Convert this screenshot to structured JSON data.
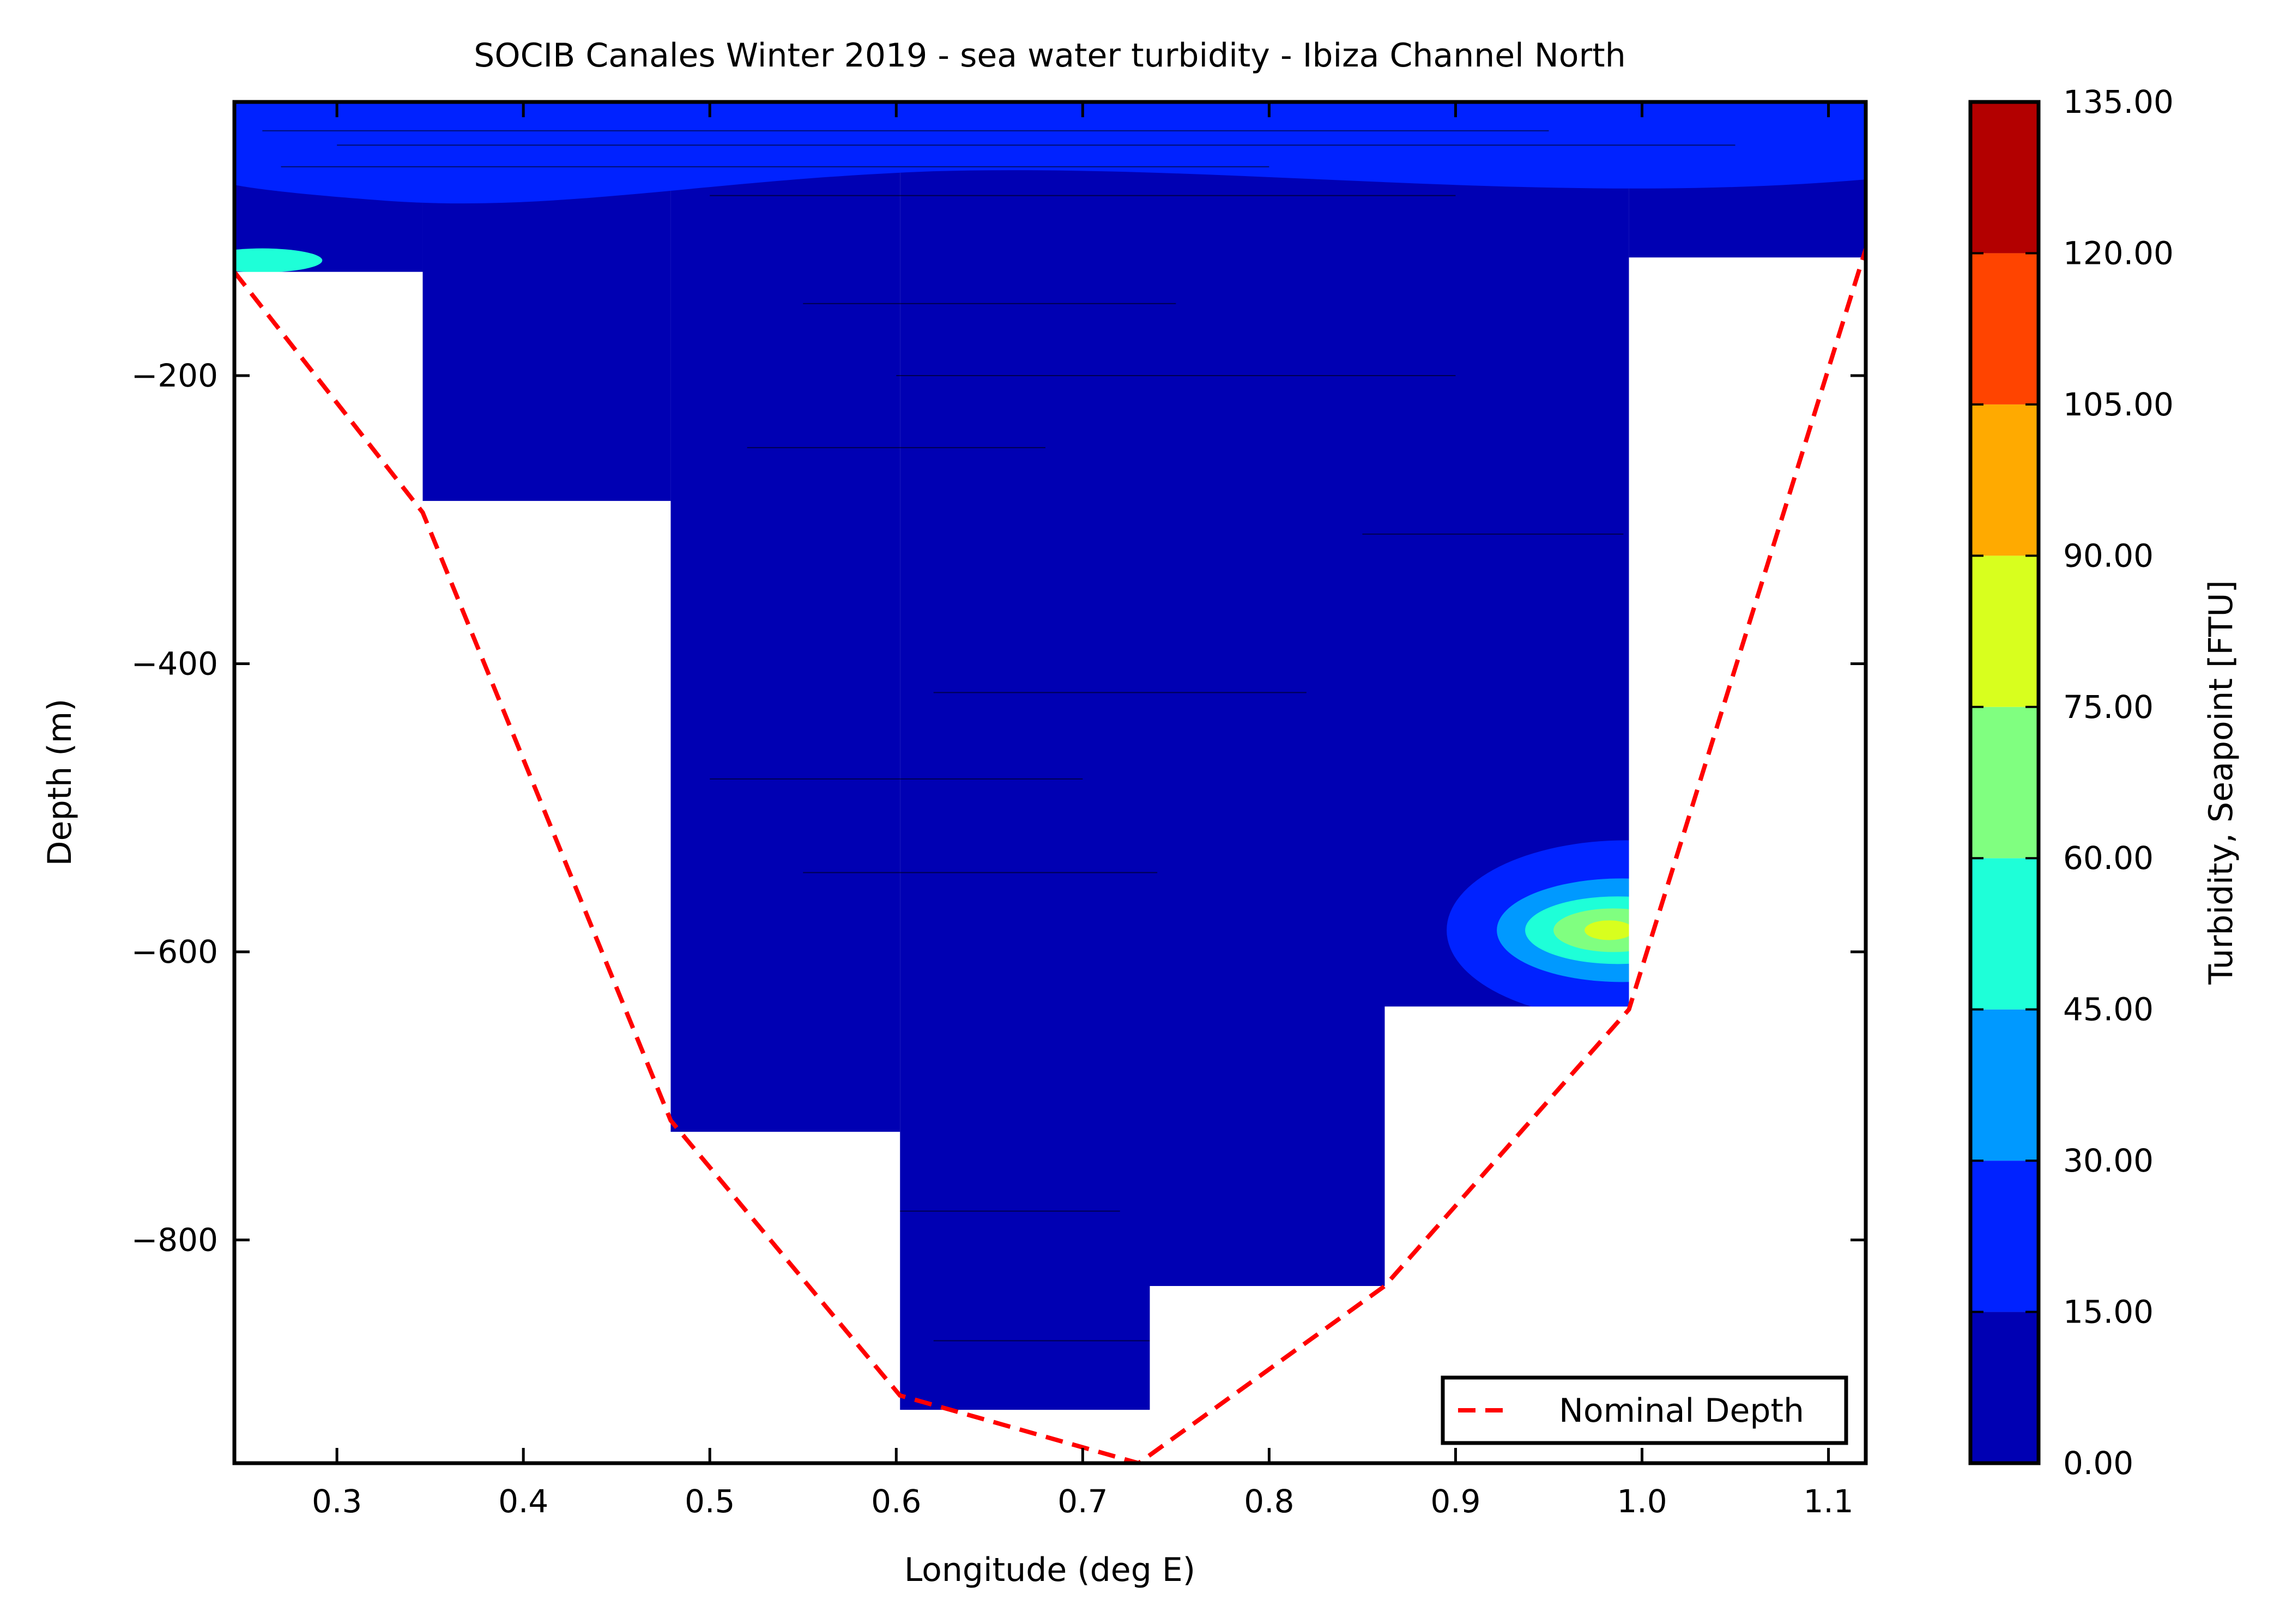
{
  "chart_data": {
    "type": "heatmap",
    "title": "SOCIB Canales Winter 2019 - sea water turbidity  -  Ibiza Channel North",
    "xlabel": "Longitude (deg E)",
    "ylabel": "Depth (m)",
    "xlim": [
      0.245,
      1.12
    ],
    "ylim": [
      -955,
      -10
    ],
    "xticks": [
      0.3,
      0.4,
      0.5,
      0.6,
      0.7,
      0.8,
      0.9,
      1.0,
      1.1
    ],
    "xtick_labels": [
      "0.3",
      "0.4",
      "0.5",
      "0.6",
      "0.7",
      "0.8",
      "0.9",
      "1.0",
      "1.1"
    ],
    "yticks": [
      -200,
      -400,
      -600,
      -800
    ],
    "ytick_labels": [
      "−200",
      "−400",
      "−600",
      "−800"
    ],
    "colorbar": {
      "label": "Turbidity, Seapoint [FTU]",
      "levels": [
        0,
        15,
        30,
        45,
        60,
        75,
        90,
        105,
        120,
        135
      ],
      "tick_labels": [
        "0.00",
        "15.00",
        "30.00",
        "45.00",
        "60.00",
        "75.00",
        "90.00",
        "105.00",
        "120.00",
        "135.00"
      ],
      "colors": [
        "#0000b3",
        "#0022ff",
        "#0099ff",
        "#1effd8",
        "#80ff80",
        "#d8ff1e",
        "#ffaa00",
        "#ff4400",
        "#b30000"
      ]
    },
    "section_profiles": [
      {
        "lon_start": 0.245,
        "lon_end": 0.346,
        "bottom_depth": -128
      },
      {
        "lon_start": 0.346,
        "lon_end": 0.479,
        "bottom_depth": -287
      },
      {
        "lon_start": 0.479,
        "lon_end": 0.602,
        "bottom_depth": -725
      },
      {
        "lon_start": 0.602,
        "lon_end": 0.736,
        "bottom_depth": -918
      },
      {
        "lon_start": 0.736,
        "lon_end": 0.862,
        "bottom_depth": -832
      },
      {
        "lon_start": 0.862,
        "lon_end": 0.993,
        "bottom_depth": -638
      },
      {
        "lon_start": 0.993,
        "lon_end": 1.12,
        "bottom_depth": -118
      }
    ],
    "dominant_turbidity_range": [
      0,
      15
    ],
    "turbidity_features": [
      {
        "description": "surface layer 15-30 FTU",
        "depth_range": [
          -60,
          -10
        ],
        "range": [
          15,
          30
        ]
      },
      {
        "description": "bottom maximum near 1.0 deg E",
        "lon": 0.98,
        "depth": -585,
        "range": [
          60,
          90
        ]
      }
    ],
    "series": [
      {
        "name": "Nominal Depth",
        "color": "#ff0000",
        "style": "dashed",
        "x": [
          0.245,
          0.346,
          0.479,
          0.602,
          0.73,
          0.862,
          0.993,
          1.12
        ],
        "y": [
          -128,
          -295,
          -717,
          -908,
          -955,
          -832,
          -640,
          -112
        ]
      }
    ],
    "legend": {
      "placement": "lower-right",
      "entries": [
        "Nominal Depth"
      ]
    }
  }
}
